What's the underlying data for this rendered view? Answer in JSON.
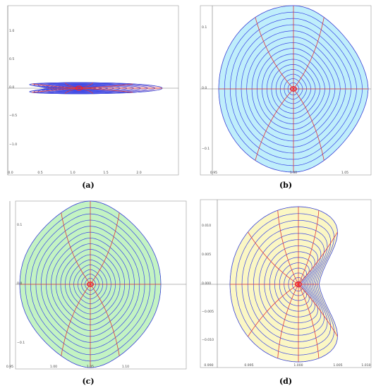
{
  "figure": {
    "panels": [
      {
        "id": "a",
        "caption": "(a)",
        "fill": "#fbdcdc",
        "x_ticks": [
          "0.0",
          "0.5",
          "1.0",
          "1.5",
          "2.0"
        ],
        "y_ticks": [
          "1.0",
          "0.5",
          "0.0",
          "−0.5",
          "−1.0"
        ]
      },
      {
        "id": "b",
        "caption": "(b)",
        "fill": "#bfeefb",
        "x_ticks": [
          "0.95",
          "1.00",
          "1.05"
        ],
        "y_ticks": [
          "0.1",
          "0.0",
          "−0.1"
        ]
      },
      {
        "id": "c",
        "caption": "(c)",
        "fill": "#c3f3c3",
        "x_ticks": [
          "0.95",
          "1.00",
          "1.05",
          "1.10"
        ],
        "y_ticks": [
          "0.1",
          "0.0",
          "−0.1"
        ]
      },
      {
        "id": "d",
        "caption": "(d)",
        "fill": "#fbf7c4",
        "x_ticks": [
          "0.990",
          "0.995",
          "1.000",
          "1.005",
          "1.010"
        ],
        "y_ticks": [
          "0.010",
          "0.005",
          "0.000",
          "−0.005",
          "−0.010"
        ]
      }
    ],
    "colors": {
      "level_curves": "#3a46e6",
      "radial_curves": "#e23a3a",
      "center": "#ff2020",
      "axes": "#777777",
      "boundary": "#6f6f9a"
    }
  }
}
